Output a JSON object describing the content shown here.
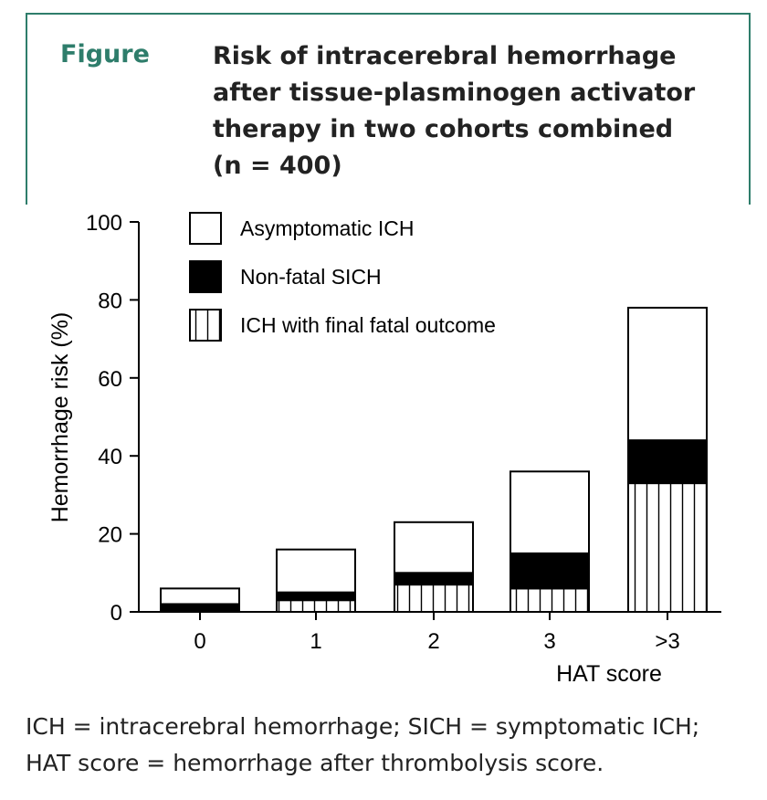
{
  "header": {
    "figure_label": "Figure",
    "title": "Risk of intracerebral hemorrhage\nafter tissue-plasminogen activator\ntherapy in two cohorts combined\n(n = 400)"
  },
  "colors": {
    "accent": "#2e7d6b",
    "text": "#222222"
  },
  "chart_data": {
    "type": "bar",
    "stacked": true,
    "categories": [
      "0",
      "1",
      "2",
      "3",
      ">3"
    ],
    "xlabel": "HAT score",
    "ylabel": "Hemorrhage risk (%)",
    "ylim": [
      0,
      100
    ],
    "yticks": [
      "0",
      "20",
      "40",
      "60",
      "80",
      "100"
    ],
    "grid": false,
    "legend_position": "top-left",
    "series": [
      {
        "name": "ICH with final fatal outcome",
        "fill": "vertical-stripes",
        "values": [
          0,
          3,
          7,
          6,
          33
        ]
      },
      {
        "name": "Non-fatal SICH",
        "fill": "solid-black",
        "values": [
          2,
          2,
          3,
          9,
          11
        ]
      },
      {
        "name": "Asymptomatic ICH",
        "fill": "white",
        "values": [
          4,
          11,
          13,
          21,
          34
        ]
      }
    ],
    "legend_order": [
      "Asymptomatic ICH",
      "Non-fatal SICH",
      "ICH with final fatal outcome"
    ]
  },
  "footnote": {
    "line1": "ICH = intracerebral hemorrhage; SICH = symptomatic ICH;",
    "line2": "HAT score = hemorrhage after thrombolysis score."
  }
}
